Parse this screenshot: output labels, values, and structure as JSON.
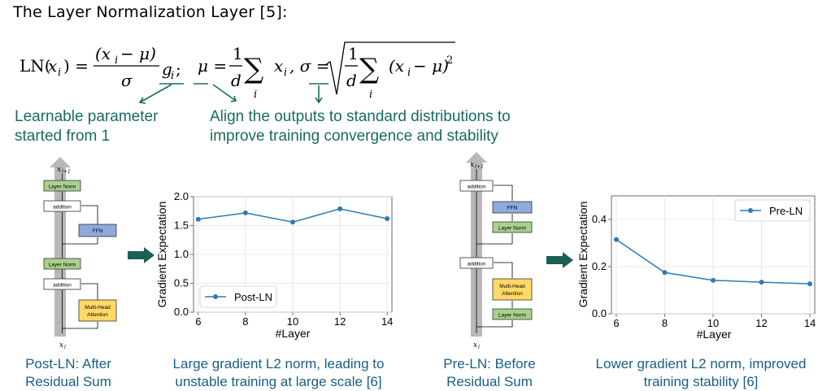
{
  "title": "The Layer Normalization Layer [5]:",
  "formula": {
    "ln_lhs": "LN(",
    "ln_x": "x",
    "ln_i": "i",
    "ln_close": ") =",
    "numerator": "(x",
    "num_i": "i",
    "num_rest": " − μ)",
    "denominator": "σ",
    "g": "g",
    "g_i": "i",
    "semicolon": ";",
    "mu_lhs": "μ =",
    "one": "1",
    "d": "d",
    "sigma_sum": "∑",
    "sum_idx": "i",
    "x": "x",
    "x_i": "i",
    "sigma_lhs": ", σ =",
    "sqrt_rest_pre": "(x",
    "sqrt_rest_i": "i",
    "sqrt_rest_post": " − μ)",
    "sq": "2"
  },
  "annotations": {
    "learnable_line1": "Learnable parameter",
    "learnable_line2": "started from 1",
    "align_line1": "Align the outputs to standard distributions to",
    "align_line2": "improve training convergence and stability"
  },
  "post_ln_diagram": {
    "top_label": "x",
    "top_sub": "l+1",
    "bottom_label": "x",
    "bottom_sub": "l",
    "blocks": [
      "Layer Norm",
      "addition",
      "FFN",
      "Layer Norm",
      "addition",
      "Multi-Head",
      "Attention"
    ]
  },
  "pre_ln_diagram": {
    "top_label": "x",
    "top_sub": "l+1",
    "bottom_label": "x",
    "bottom_sub": "l",
    "blocks": [
      "addition",
      "FFN",
      "Layer Norm",
      "addition",
      "Multi-Head",
      "Attention",
      "Layer Norm"
    ]
  },
  "captions": {
    "post_ln_line1": "Post-LN: After",
    "post_ln_line2": "Residual Sum",
    "post_chart_line1": "Large gradient L2 norm, leading to",
    "post_chart_line2": "unstable training at large scale [6]",
    "pre_ln_line1": "Pre-LN: Before",
    "pre_ln_line2": "Residual Sum",
    "pre_chart_line1": "Lower gradient L2 norm, improved",
    "pre_chart_line2": "training stability [6]"
  },
  "colors": {
    "teal_text": "#1a6b5f",
    "caption_blue": "#1a5d86",
    "series": "#2e7bb4",
    "layer_norm_fill": "#a9d18e",
    "ffn_fill": "#8faadc",
    "attention_fill": "#ffd966",
    "arrow_fill": "#1d5e55"
  },
  "chart_data": [
    {
      "type": "line",
      "xlabel": "#Layer",
      "ylabel": "Gradient Expectation",
      "x": [
        6,
        8,
        10,
        12,
        14
      ],
      "xticks": [
        "6",
        "8",
        "10",
        "12",
        "14"
      ],
      "yticks": [
        "0.0",
        "0.5",
        "1.0",
        "1.5",
        "2.0"
      ],
      "ylim": [
        0,
        2.0
      ],
      "xlim": [
        5.8,
        14.2
      ],
      "series": [
        {
          "name": "Post-LN",
          "values": [
            1.61,
            1.72,
            1.56,
            1.79,
            1.62
          ]
        }
      ],
      "legend": "bottom-left",
      "grid": true
    },
    {
      "type": "line",
      "xlabel": "#Layer",
      "ylabel": "Gradient Expectation",
      "x": [
        6,
        8,
        10,
        12,
        14
      ],
      "xticks": [
        "6",
        "8",
        "10",
        "12",
        "14"
      ],
      "yticks": [
        "0.0",
        "0.2",
        "0.4"
      ],
      "ylim": [
        0,
        0.5
      ],
      "xlim": [
        5.8,
        14.2
      ],
      "series": [
        {
          "name": "Pre-LN",
          "values": [
            0.315,
            0.175,
            0.142,
            0.134,
            0.127
          ]
        }
      ],
      "legend": "top-right",
      "grid": true
    }
  ]
}
